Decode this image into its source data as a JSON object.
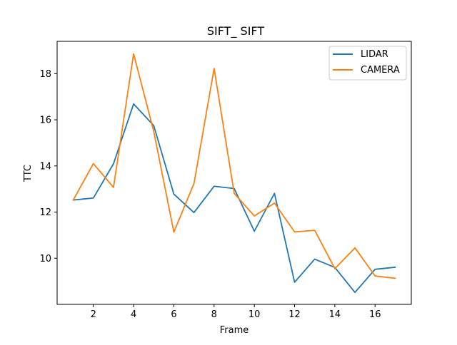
{
  "chart_data": {
    "type": "line",
    "title": "SIFT_ SIFT",
    "xlabel": "Frame",
    "ylabel": "TTC",
    "x": [
      1,
      2,
      3,
      4,
      5,
      6,
      7,
      8,
      9,
      10,
      11,
      12,
      13,
      14,
      15,
      16,
      17
    ],
    "series": [
      {
        "name": "LIDAR",
        "color": "#1f77b4",
        "values": [
          12.52,
          12.61,
          14.09,
          16.69,
          15.75,
          12.78,
          11.98,
          13.12,
          13.02,
          11.17,
          12.81,
          8.96,
          9.96,
          9.6,
          8.52,
          9.52,
          9.61
        ]
      },
      {
        "name": "CAMERA",
        "color": "#ff7f0e",
        "values": [
          12.52,
          14.1,
          13.07,
          18.86,
          15.5,
          11.13,
          13.24,
          18.22,
          12.81,
          11.83,
          12.39,
          11.14,
          11.21,
          9.55,
          10.45,
          9.23,
          9.13
        ]
      }
    ],
    "xlim": [
      0.2,
      17.8
    ],
    "ylim": [
      8.0,
      19.4
    ],
    "xticks": [
      2,
      4,
      6,
      8,
      10,
      12,
      14,
      16
    ],
    "yticks": [
      10,
      12,
      14,
      16,
      18
    ],
    "grid": false,
    "legend": "top-right"
  }
}
